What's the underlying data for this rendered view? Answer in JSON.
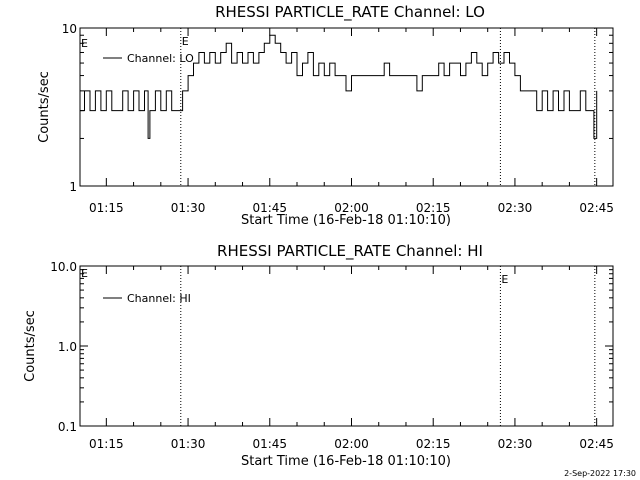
{
  "footer_timestamp": "2-Sep-2022 17:30",
  "chart_data": [
    {
      "type": "line",
      "title": "RHESSI PARTICLE_RATE Channel: LO",
      "xlabel": "Start Time (16-Feb-18 01:10:10)",
      "ylabel": "Counts/sec",
      "yscale": "log",
      "ylim": [
        1,
        10
      ],
      "xlim": [
        "01:10:10",
        "02:48:00"
      ],
      "y_tick_labels": [
        "1",
        "10"
      ],
      "x_tick_labels": [
        "01:15",
        "01:30",
        "01:45",
        "02:00",
        "02:15",
        "02:30",
        "02:45"
      ],
      "grid": false,
      "legend_position": "top-left",
      "event_markers": [
        {
          "time": "01:28:40",
          "label": "E"
        },
        {
          "time": "02:27:20",
          "label": ""
        },
        {
          "time": "02:44:40",
          "label": ""
        }
      ],
      "corner_label": "E",
      "series": [
        {
          "name": "Channel: LO",
          "x": [
            "01:10:10",
            "01:11:00",
            "01:12:00",
            "01:13:00",
            "01:14:00",
            "01:15:00",
            "01:16:00",
            "01:17:00",
            "01:18:00",
            "01:19:00",
            "01:20:00",
            "01:21:00",
            "01:22:00",
            "01:22:40",
            "01:23:00",
            "01:24:00",
            "01:25:00",
            "01:26:00",
            "01:27:00",
            "01:28:00",
            "01:28:40",
            "01:29:00",
            "01:30:00",
            "01:31:00",
            "01:32:00",
            "01:33:00",
            "01:34:00",
            "01:35:00",
            "01:36:00",
            "01:37:00",
            "01:38:00",
            "01:39:00",
            "01:40:00",
            "01:41:00",
            "01:42:00",
            "01:43:00",
            "01:44:00",
            "01:45:00",
            "01:46:00",
            "01:47:00",
            "01:48:00",
            "01:49:00",
            "01:50:00",
            "01:51:00",
            "01:52:00",
            "01:53:00",
            "01:54:00",
            "01:55:00",
            "01:56:00",
            "01:57:00",
            "01:58:00",
            "01:59:00",
            "02:00:00",
            "02:01:00",
            "02:02:00",
            "02:03:00",
            "02:04:00",
            "02:05:00",
            "02:06:00",
            "02:07:00",
            "02:08:00",
            "02:09:00",
            "02:10:00",
            "02:11:00",
            "02:12:00",
            "02:13:00",
            "02:14:00",
            "02:15:00",
            "02:16:00",
            "02:17:00",
            "02:18:00",
            "02:19:00",
            "02:20:00",
            "02:21:00",
            "02:22:00",
            "02:23:00",
            "02:24:00",
            "02:25:00",
            "02:26:00",
            "02:27:00",
            "02:28:00",
            "02:29:00",
            "02:30:00",
            "02:31:00",
            "02:32:00",
            "02:33:00",
            "02:34:00",
            "02:35:00",
            "02:36:00",
            "02:37:00",
            "02:38:00",
            "02:39:00",
            "02:40:00",
            "02:41:00",
            "02:42:00",
            "02:43:00",
            "02:44:00",
            "02:44:30",
            "02:45:00"
          ],
          "y": [
            3,
            4,
            3,
            4,
            3,
            4,
            3,
            3,
            4,
            3,
            4,
            3,
            4,
            2,
            3,
            4,
            3,
            4,
            3,
            3,
            3,
            4,
            5,
            6,
            7,
            6,
            7,
            6,
            7,
            8,
            6,
            7,
            6,
            7,
            6,
            7,
            8,
            9,
            8,
            7,
            6,
            7,
            5,
            6,
            7,
            5,
            6,
            5,
            6,
            5,
            5,
            4,
            5,
            5,
            5,
            5,
            5,
            5,
            6,
            5,
            5,
            5,
            5,
            5,
            4,
            5,
            5,
            5,
            6,
            5,
            6,
            6,
            5,
            6,
            7,
            6,
            5,
            6,
            7,
            6,
            7,
            6,
            5,
            4,
            4,
            4,
            3,
            4,
            3,
            4,
            3,
            4,
            3,
            3,
            4,
            3,
            3,
            2,
            4
          ]
        }
      ]
    },
    {
      "type": "line",
      "title": "RHESSI PARTICLE_RATE Channel: HI",
      "xlabel": "Start Time (16-Feb-18 01:10:10)",
      "ylabel": "Counts/sec",
      "yscale": "log",
      "ylim": [
        0.1,
        10
      ],
      "xlim": [
        "01:10:10",
        "02:48:00"
      ],
      "y_tick_labels": [
        "0.1",
        "1.0",
        "10.0"
      ],
      "x_tick_labels": [
        "01:15",
        "01:30",
        "01:45",
        "02:00",
        "02:15",
        "02:30",
        "02:45"
      ],
      "grid": false,
      "legend_position": "top-left",
      "event_markers": [
        {
          "time": "01:28:40",
          "label": ""
        },
        {
          "time": "02:27:20",
          "label": "E"
        },
        {
          "time": "02:44:40",
          "label": ""
        }
      ],
      "corner_label": "E",
      "series": [
        {
          "name": "Channel: HI",
          "x": [],
          "y": []
        }
      ]
    }
  ]
}
